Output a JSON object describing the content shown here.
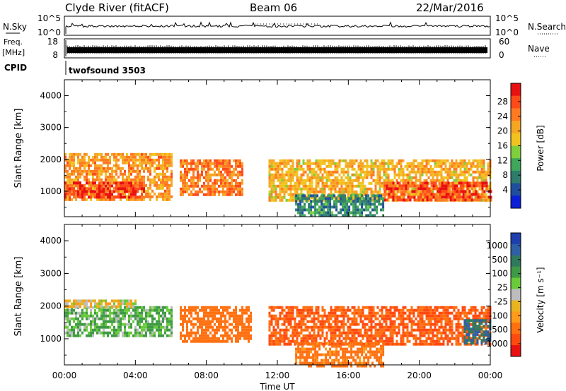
{
  "header": {
    "station": "Clyde River (fitACF)",
    "beam": "Beam 06",
    "date": "22/Mar/2016"
  },
  "noise_panel": {
    "left_label": "N.Sky",
    "right_label": "N.Search",
    "left_ticks": [
      "10^5",
      "10^0"
    ],
    "right_ticks": [
      "10^5",
      "10^0"
    ]
  },
  "freq_panel": {
    "left_label_1": "Freq.",
    "left_label_2": "[MHz]",
    "right_label": "Nave",
    "left_ticks": [
      "18",
      "8"
    ],
    "right_ticks": [
      "60",
      "0"
    ]
  },
  "cpid": {
    "label": "CPID",
    "program": "twofsound 3503"
  },
  "colorbars": {
    "power": {
      "label": "Power [dB]",
      "ticks": [
        "28",
        "24",
        "20",
        "16",
        "12",
        "8",
        "4"
      ],
      "colors": [
        "#e81010",
        "#ff4a1a",
        "#ff7a20",
        "#f5a623",
        "#f2c31f",
        "#7fcf3c",
        "#3fa65a",
        "#2e7d6b",
        "#1f4f9c",
        "#0b1fd6"
      ]
    },
    "velocity": {
      "label": "Velocity [m s⁻¹]",
      "ticks": [
        "1000",
        "500",
        "100",
        "25",
        "-25",
        "-100",
        "-500",
        "-1000"
      ],
      "colors": [
        "#1d3fae",
        "#2f5fa5",
        "#2f7a5e",
        "#3f9a45",
        "#6acb3a",
        "#bdbdbd",
        "#e8b420",
        "#ff9a1a",
        "#ff7010",
        "#ff4a10",
        "#e81010"
      ]
    }
  },
  "chart_data": [
    {
      "type": "heatmap",
      "title": "",
      "xlabel": "",
      "ylabel": "Slant Range [km]",
      "xlim": [
        0,
        24
      ],
      "ylim": [
        200,
        4500
      ],
      "x_ticks": [
        "00:00",
        "04:00",
        "08:00",
        "12:00",
        "16:00",
        "20:00",
        "00:00"
      ],
      "y_ticks": [
        1000,
        2000,
        3000,
        4000
      ],
      "quantity": "Power [dB]",
      "regions": [
        {
          "t0": 0.0,
          "t1": 6.0,
          "r0": 700,
          "r1": 2200,
          "value": 22
        },
        {
          "t0": 0.0,
          "t1": 4.5,
          "r0": 800,
          "r1": 1300,
          "value": 28
        },
        {
          "t0": 6.5,
          "t1": 10.0,
          "r0": 900,
          "r1": 2000,
          "value": 24
        },
        {
          "t0": 11.5,
          "t1": 24.0,
          "r0": 700,
          "r1": 2000,
          "value": 20
        },
        {
          "t0": 18.0,
          "t1": 24.0,
          "r0": 700,
          "r1": 1300,
          "value": 27
        },
        {
          "t0": 13.0,
          "t1": 18.0,
          "r0": 200,
          "r1": 900,
          "value": 10
        }
      ]
    },
    {
      "type": "heatmap",
      "title": "",
      "xlabel": "Time UT",
      "ylabel": "Slant Range [km]",
      "xlim": [
        0,
        24
      ],
      "ylim": [
        200,
        4500
      ],
      "x_ticks": [
        "00:00",
        "04:00",
        "08:00",
        "12:00",
        "16:00",
        "20:00",
        "00:00"
      ],
      "y_ticks": [
        1000,
        2000,
        3000,
        4000
      ],
      "quantity": "Velocity [m s-1]",
      "regions": [
        {
          "t0": 0.0,
          "t1": 6.0,
          "r0": 1100,
          "r1": 2000,
          "value": 100
        },
        {
          "t0": 0.0,
          "t1": 4.0,
          "r0": 2000,
          "r1": 2200,
          "value": 0
        },
        {
          "t0": 6.5,
          "t1": 10.5,
          "r0": 900,
          "r1": 2000,
          "value": -200
        },
        {
          "t0": 11.5,
          "t1": 24.0,
          "r0": 800,
          "r1": 2000,
          "value": -300
        },
        {
          "t0": 13.0,
          "t1": 18.0,
          "r0": 200,
          "r1": 900,
          "value": -150
        },
        {
          "t0": 22.5,
          "t1": 24.0,
          "r0": 900,
          "r1": 1600,
          "value": 500
        }
      ]
    }
  ]
}
